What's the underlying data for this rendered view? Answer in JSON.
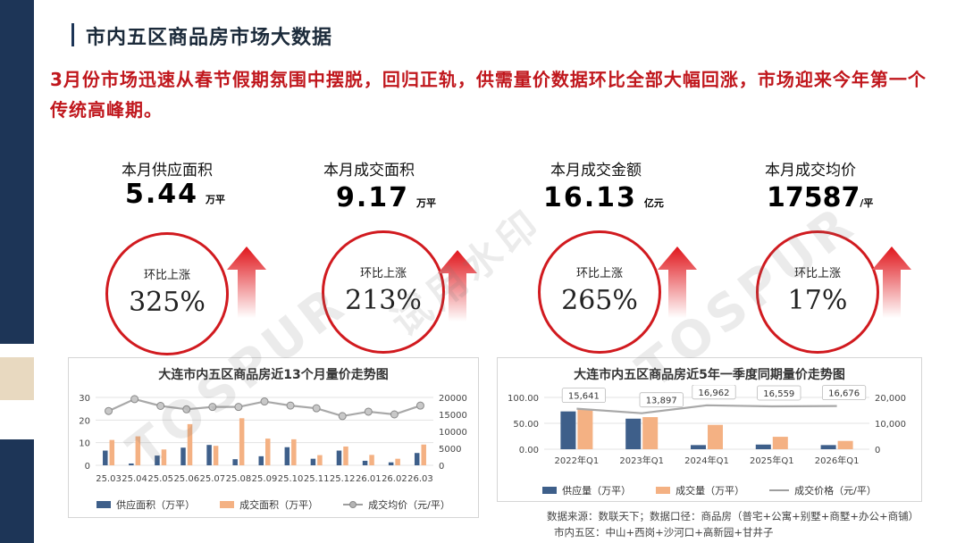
{
  "page": {
    "title": "市内五区商品房市场大数据",
    "headline": "3月份市场迅速从春节假期氛围中摆脱，回归正轨，供需量价数据环比全部大幅回涨，市场迎来今年第一个传统高峰期。"
  },
  "kpis": [
    {
      "label": "本月供应面积",
      "value": "5.44",
      "unit": "万平",
      "change_label": "环比上涨",
      "change": "325%"
    },
    {
      "label": "本月成交面积",
      "value": "9.17",
      "unit": "万平",
      "change_label": "环比上涨",
      "change": "213%"
    },
    {
      "label": "本月成交金额",
      "value": "16.13",
      "unit": "亿元",
      "change_label": "环比上涨",
      "change": "265%"
    },
    {
      "label": "本月成交均价",
      "value": "17587",
      "unit": "/平",
      "change_label": "环比上涨",
      "change": "17%"
    }
  ],
  "colors": {
    "accent_red": "#d11a1f",
    "navy": "#1d3557",
    "supply_bar": "#3e5f8a",
    "deal_bar": "#f4b183",
    "price_line": "#9e9e9e"
  },
  "icons": {
    "arrow": "up-arrow-icon"
  },
  "legend": {
    "supply": "供应面积（万平）",
    "deal": "成交面积（万平）",
    "price": "成交均价（元/平）"
  },
  "legend2": {
    "supply": "供应量（万平）",
    "deal": "成交量（万平）",
    "price": "成交价格（元/平）"
  },
  "chart_data": [
    {
      "type": "bar",
      "title": "大连市内五区商品房近13个月量价走势图",
      "categories": [
        "25.03",
        "25.04",
        "25.05",
        "25.06",
        "25.07",
        "25.08",
        "25.09",
        "25.10",
        "25.11",
        "25.12",
        "26.01",
        "26.02",
        "26.03"
      ],
      "series": [
        {
          "name": "供应面积（万平）",
          "values": [
            6.5,
            0.8,
            4.3,
            7.8,
            9.0,
            2.7,
            4.0,
            8.0,
            2.9,
            6.5,
            2.0,
            1.3,
            5.44
          ]
        },
        {
          "name": "成交面积（万平）",
          "values": [
            11.2,
            12.8,
            7.0,
            18.2,
            8.6,
            20.8,
            11.8,
            11.5,
            4.5,
            8.3,
            4.6,
            2.9,
            9.17
          ]
        },
        {
          "name": "成交均价（元/平）",
          "axis": "right",
          "values": [
            16000,
            19500,
            17500,
            16500,
            17200,
            17200,
            18800,
            17600,
            16800,
            14500,
            15800,
            15000,
            17587
          ]
        }
      ],
      "y_left": {
        "min": 0,
        "max": 30,
        "ticks": [
          0,
          10,
          20,
          30
        ]
      },
      "y_right": {
        "min": 0,
        "max": 20000,
        "ticks": [
          0,
          5000,
          10000,
          15000,
          20000
        ]
      },
      "legend_position": "bottom"
    },
    {
      "type": "bar",
      "title": "大连市内五区商品房近5年一季度同期量价走势图",
      "categories": [
        "2022年Q1",
        "2023年Q1",
        "2024年Q1",
        "2025年Q1",
        "2026年Q1"
      ],
      "series": [
        {
          "name": "供应量（万平）",
          "values": [
            73,
            59,
            8,
            9,
            8
          ]
        },
        {
          "name": "成交量（万平）",
          "values": [
            77,
            62,
            47,
            24,
            16
          ]
        },
        {
          "name": "成交价格（元/平）",
          "axis": "right",
          "values": [
            15641,
            13897,
            16962,
            16559,
            16676
          ]
        }
      ],
      "value_labels": [
        "15,641",
        "13,897",
        "16,962",
        "16,559",
        "16,676"
      ],
      "y_left": {
        "min": 0,
        "max": 100,
        "ticks": [
          "0.00",
          "50.00",
          "100.00"
        ]
      },
      "y_right": {
        "min": 0,
        "max": 20000,
        "ticks": [
          "0",
          "10,000",
          "20,000"
        ]
      },
      "legend_position": "bottom"
    }
  ],
  "source": {
    "line1": "数据来源：数联天下；数据口径：商品房（普宅+公寓+别墅+商墅+办公+商铺）",
    "line2": "市内五区：中山+西岗+沙河口+高新园+甘井子"
  },
  "watermarks": [
    "TOSPUR",
    "试用水印",
    "TOSPUR"
  ]
}
